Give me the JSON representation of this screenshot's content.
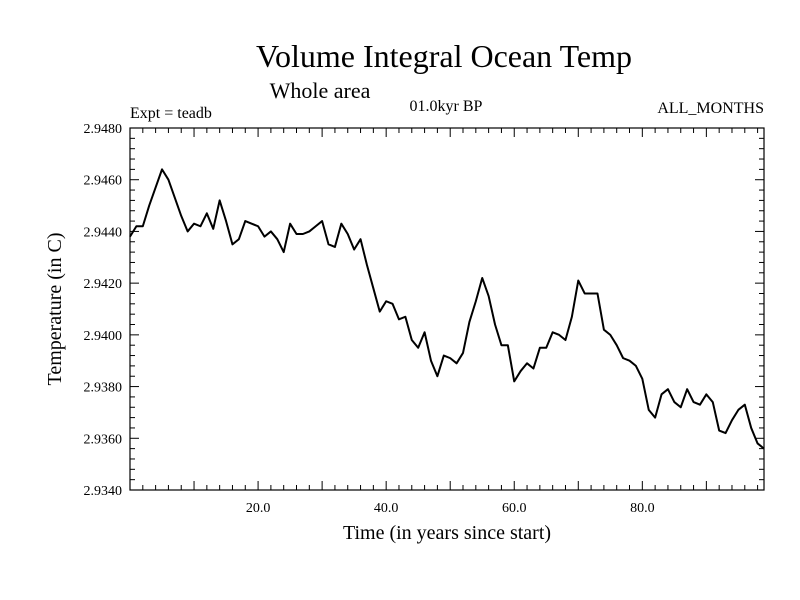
{
  "chart_data": {
    "type": "line",
    "title": "Volume Integral Ocean Temp",
    "subtitle": "Whole area",
    "annotations": {
      "left": "Expt = teadb",
      "center": "01.0kyr BP",
      "right": "ALL_MONTHS"
    },
    "xlabel": "Time (in years since start)",
    "ylabel": "Temperature (in C)",
    "xlim": [
      0,
      99
    ],
    "ylim": [
      2.934,
      2.948
    ],
    "xticks": [
      20,
      40,
      60,
      80
    ],
    "xtick_labels": [
      "20.0",
      "40.0",
      "60.0",
      "80.0"
    ],
    "yticks": [
      2.934,
      2.936,
      2.938,
      2.94,
      2.942,
      2.944,
      2.946,
      2.948
    ],
    "ytick_labels": [
      "2.9340",
      "2.9360",
      "2.9380",
      "2.9400",
      "2.9420",
      "2.9440",
      "2.9460",
      "2.9480"
    ],
    "series": [
      {
        "name": "Volume Integral Ocean Temp",
        "color": "#000000",
        "x": [
          0,
          1,
          2,
          3,
          4,
          5,
          6,
          7,
          8,
          9,
          10,
          11,
          12,
          13,
          14,
          15,
          16,
          17,
          18,
          19,
          20,
          21,
          22,
          23,
          24,
          25,
          26,
          27,
          28,
          29,
          30,
          31,
          32,
          33,
          34,
          35,
          36,
          37,
          38,
          39,
          40,
          41,
          42,
          43,
          44,
          45,
          46,
          47,
          48,
          49,
          50,
          51,
          52,
          53,
          54,
          55,
          56,
          57,
          58,
          59,
          60,
          61,
          62,
          63,
          64,
          65,
          66,
          67,
          68,
          69,
          70,
          71,
          72,
          73,
          74,
          75,
          76,
          77,
          78,
          79,
          80,
          81,
          82,
          83,
          84,
          85,
          86,
          87,
          88,
          89,
          90,
          91,
          92,
          93,
          94,
          95,
          96,
          97,
          98,
          99
        ],
        "values": [
          2.9438,
          2.9442,
          2.9442,
          2.945,
          2.9457,
          2.9464,
          2.946,
          2.9453,
          2.9446,
          2.944,
          2.9443,
          2.9442,
          2.9447,
          2.9441,
          2.9452,
          2.9444,
          2.9435,
          2.9437,
          2.9444,
          2.9443,
          2.9442,
          2.9438,
          2.944,
          2.9437,
          2.9432,
          2.9443,
          2.9439,
          2.9439,
          2.944,
          2.9442,
          2.9444,
          2.9435,
          2.9434,
          2.9443,
          2.9439,
          2.9433,
          2.9437,
          2.9427,
          2.9418,
          2.9409,
          2.9413,
          2.9412,
          2.9406,
          2.9407,
          2.9398,
          2.9395,
          2.9401,
          2.939,
          2.9384,
          2.9392,
          2.9391,
          2.9389,
          2.9393,
          2.9405,
          2.9413,
          2.9422,
          2.9415,
          2.9404,
          2.9396,
          2.9396,
          2.9382,
          2.9386,
          2.9389,
          2.9387,
          2.9395,
          2.9395,
          2.9401,
          2.94,
          2.9398,
          2.9407,
          2.9421,
          2.9416,
          2.9416,
          2.9416,
          2.9402,
          2.94,
          2.9396,
          2.9391,
          2.939,
          2.9388,
          2.9383,
          2.9371,
          2.9368,
          2.9377,
          2.9379,
          2.9374,
          2.9372,
          2.9379,
          2.9374,
          2.9373,
          2.9377,
          2.9374,
          2.9363,
          2.9362,
          2.9367,
          2.9371,
          2.9373,
          2.9364,
          2.9358,
          2.9356
        ]
      }
    ]
  }
}
